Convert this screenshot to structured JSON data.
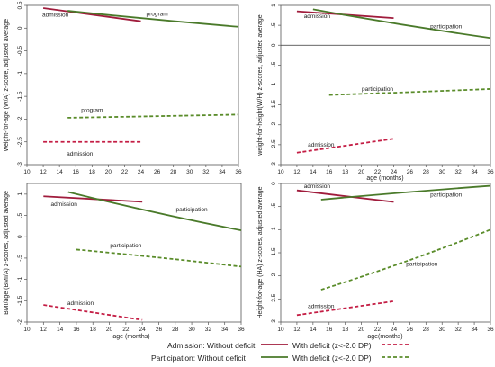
{
  "colors": {
    "admission": "#a01c3c",
    "admission_deficit": "#c41e45",
    "participation": "#4a7a2a",
    "participation_deficit": "#5a8c2a",
    "reference_line": "#333333"
  },
  "chart_data": [
    {
      "type": "line",
      "ylabel": "weight-for-age (W/A) z-score, adjusted average",
      "xlabel": "",
      "xlim": [
        10,
        36
      ],
      "xticks": [
        10,
        12,
        14,
        16,
        18,
        20,
        22,
        24,
        26,
        28,
        30,
        32,
        34,
        36
      ],
      "ylim": [
        -3,
        0.5
      ],
      "yticks": [
        0.5,
        0,
        -0.5,
        -1,
        -1.5,
        -2,
        -2.5,
        -3
      ],
      "ytick_labels": [
        "0.5",
        "0",
        "-0.5",
        "-1",
        "-1.5",
        "-2",
        "-2.5",
        "-3"
      ],
      "reference_line": false,
      "series": [
        {
          "key": "admission",
          "x": [
            12,
            24
          ],
          "y": [
            0.44,
            0.15
          ]
        },
        {
          "key": "participation",
          "x": [
            15,
            36
          ],
          "y": [
            0.38,
            0.03
          ]
        },
        {
          "key": "admission_deficit",
          "x": [
            12,
            24
          ],
          "y": [
            -2.5,
            -2.5
          ]
        },
        {
          "key": "participation_deficit",
          "x": [
            15,
            36
          ],
          "y": [
            -1.97,
            -1.9
          ]
        }
      ],
      "annotations": [
        {
          "text": "admission",
          "x": 13.5,
          "y": 0.25
        },
        {
          "text": "program",
          "x": 26,
          "y": 0.27
        },
        {
          "text": "program",
          "x": 18,
          "y": -1.84
        },
        {
          "text": "admission",
          "x": 16.5,
          "y": -2.8
        }
      ]
    },
    {
      "type": "line",
      "ylabel": "weight-for-height(W/H) z-scores, adjusted average",
      "xlabel": "age (months)",
      "xlim": [
        10,
        36
      ],
      "xticks": [
        10,
        12,
        14,
        16,
        18,
        20,
        22,
        24,
        26,
        28,
        30,
        32,
        34,
        36
      ],
      "ylim": [
        -3,
        1
      ],
      "yticks": [
        1,
        0.5,
        0,
        -0.5,
        -1,
        -1.5,
        -2,
        -2.5,
        -3
      ],
      "ytick_labels": [
        "1",
        ".5",
        "0",
        "-.5",
        "-1",
        "-1.5",
        "-2",
        "-2.5",
        "-3"
      ],
      "reference_line": true,
      "series": [
        {
          "key": "admission",
          "x": [
            12,
            24
          ],
          "y": [
            0.85,
            0.68
          ]
        },
        {
          "key": "participation",
          "x": [
            14,
            36
          ],
          "y": [
            0.9,
            0.18
          ]
        },
        {
          "key": "admission_deficit",
          "x": [
            12,
            24
          ],
          "y": [
            -2.7,
            -2.35
          ]
        },
        {
          "key": "participation_deficit",
          "x": [
            16,
            36
          ],
          "y": [
            -1.25,
            -1.1
          ]
        }
      ],
      "annotations": [
        {
          "text": "admission",
          "x": 14.5,
          "y": 0.68
        },
        {
          "text": "participation",
          "x": 30.5,
          "y": 0.42
        },
        {
          "text": "participation",
          "x": 22,
          "y": -1.15
        },
        {
          "text": "admission",
          "x": 15,
          "y": -2.55
        }
      ]
    },
    {
      "type": "line",
      "ylabel": "BMI/age (BMI/A) z-scores, adjusted average",
      "xlabel": "age (months)",
      "xlim": [
        10,
        36
      ],
      "xticks": [
        10,
        12,
        14,
        16,
        18,
        20,
        22,
        24,
        26,
        28,
        30,
        32,
        34,
        36
      ],
      "ylim": [
        -2,
        1.25
      ],
      "yticks": [
        1,
        0.5,
        0,
        -0.5,
        -1,
        -1.5,
        -2
      ],
      "ytick_labels": [
        "1",
        ".5",
        "0",
        "-.5",
        "-1",
        "-1.5",
        "-2"
      ],
      "reference_line": false,
      "series": [
        {
          "key": "admission",
          "x": [
            12,
            24
          ],
          "y": [
            0.95,
            0.82
          ]
        },
        {
          "key": "participation",
          "x": [
            15,
            36
          ],
          "y": [
            1.05,
            0.15
          ]
        },
        {
          "key": "admission_deficit",
          "x": [
            12,
            24
          ],
          "y": [
            -1.6,
            -1.95
          ]
        },
        {
          "key": "participation_deficit",
          "x": [
            16,
            36
          ],
          "y": [
            -0.3,
            -0.7
          ]
        }
      ],
      "annotations": [
        {
          "text": "admission",
          "x": 14.5,
          "y": 0.72
        },
        {
          "text": "participation",
          "x": 30,
          "y": 0.6
        },
        {
          "text": "participation",
          "x": 22,
          "y": -0.25
        },
        {
          "text": "admission",
          "x": 16.5,
          "y": -1.6
        }
      ]
    },
    {
      "type": "line",
      "ylabel": "Height-for-age (HA) z-scores, adjusted average",
      "xlabel": "age(months)",
      "xlim": [
        10,
        36
      ],
      "xticks": [
        10,
        12,
        14,
        16,
        18,
        20,
        22,
        24,
        26,
        28,
        30,
        32,
        34,
        36
      ],
      "ylim": [
        -3,
        0
      ],
      "yticks": [
        0,
        -0.5,
        -1,
        -1.5,
        -2,
        -2.5,
        -3
      ],
      "ytick_labels": [
        "0",
        "-.5",
        "-1",
        "-1.5",
        "-2",
        "-2.5",
        "-3"
      ],
      "reference_line": false,
      "series": [
        {
          "key": "admission",
          "x": [
            12,
            24
          ],
          "y": [
            -0.15,
            -0.4
          ]
        },
        {
          "key": "participation",
          "x": [
            15,
            36
          ],
          "y": [
            -0.35,
            -0.05
          ]
        },
        {
          "key": "admission_deficit",
          "x": [
            12,
            24
          ],
          "y": [
            -2.85,
            -2.55
          ]
        },
        {
          "key": "participation_deficit",
          "x": [
            15,
            36
          ],
          "y": [
            -2.3,
            -1.0
          ]
        }
      ],
      "annotations": [
        {
          "text": "admission",
          "x": 14.5,
          "y": -0.1
        },
        {
          "text": "participation",
          "x": 30.5,
          "y": -0.28
        },
        {
          "text": "participation",
          "x": 27.5,
          "y": -1.78
        },
        {
          "text": "admission",
          "x": 15,
          "y": -2.7
        }
      ]
    }
  ],
  "legend": [
    {
      "text": "Admission: Without deficit",
      "key": "admission"
    },
    {
      "text": "With deficit (z<-2.0 DP)",
      "key": "admission_deficit"
    },
    {
      "text": "Participation: Without deficit",
      "key": "participation"
    },
    {
      "text": "With deficit (z<-2.0 DP)",
      "key": "participation_deficit"
    }
  ]
}
